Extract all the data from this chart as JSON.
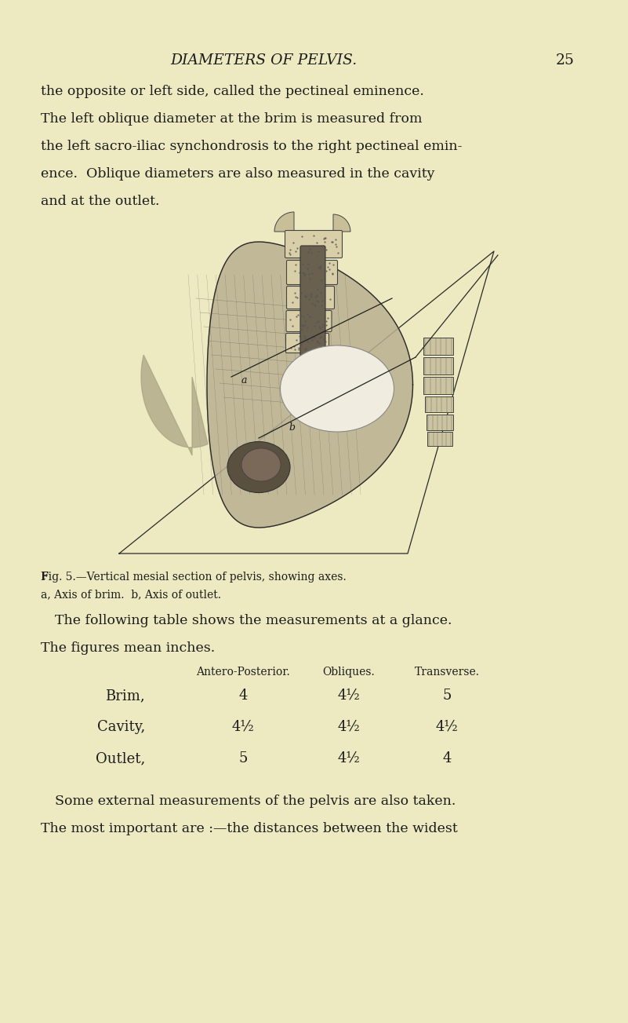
{
  "bg_color": "#ede9c0",
  "page_width": 8.01,
  "page_height": 13.03,
  "dpi": 100,
  "header_title": "DIAMETERS OF PELVIS.",
  "page_number": "25",
  "lines_para1": [
    "the opposite or left side, called the pectineal eminence.",
    "The left oblique diameter at the brim is measured from",
    "the left sacro-iliac synchondrosis to the right pectineal emin-",
    "ence.  Oblique diameters are also measured in the cavity",
    "and at the outlet."
  ],
  "fig_caption_bold": "Fig. 5.",
  "fig_caption_rest": "—Vertical mesial section of pelvis, showing axes.",
  "fig_caption_line2": "a, Axis of brim.  b, Axis of outlet.",
  "para2_line1": "The following table shows the measurements at a glance.",
  "para2_line2": "The figures mean inches.",
  "table_header": [
    "Antero-Posterior.",
    "Obliques.",
    "Transverse."
  ],
  "table_rows": [
    [
      "Brim,",
      "4",
      "4½",
      "5"
    ],
    [
      "Cavity,",
      "4½",
      "4½",
      "4½"
    ],
    [
      "Outlet,",
      "5",
      "4½",
      "4"
    ]
  ],
  "para3_line1": "Some external measurements of the pelvis are also taken.",
  "para3_line2": "The most important are :—the distances between the widest",
  "text_color": "#1c1c1c"
}
